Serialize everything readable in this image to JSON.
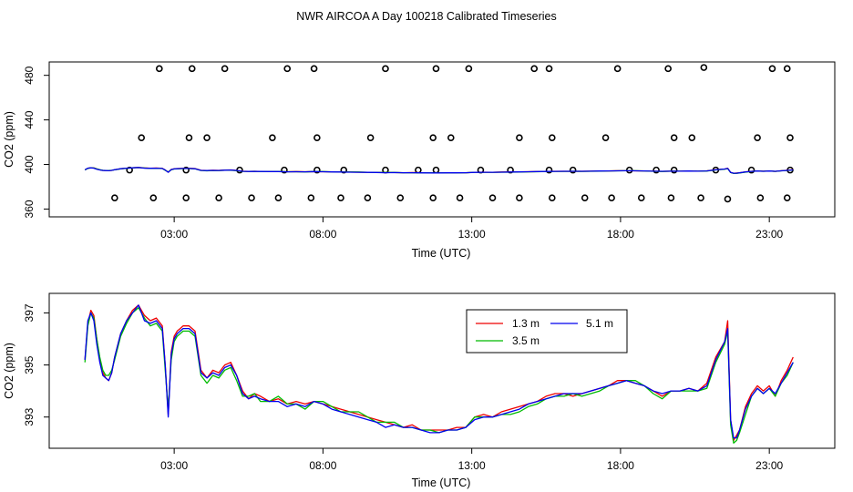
{
  "title": "NWR AIRCOA A  Day 100218  Calibrated Timeseries",
  "colors": {
    "s1": "#ee0000",
    "s2": "#00bb00",
    "s3": "#0000ee"
  },
  "chart_data": [
    {
      "type": "scatter",
      "name": "top-panel",
      "xlabel": "Time (UTC)",
      "ylabel": "CO2 (ppm)",
      "xlim": [
        -1.2,
        25.2
      ],
      "ylim": [
        353,
        492
      ],
      "xticks": [
        3,
        8,
        13,
        18,
        23
      ],
      "xtick_labels": [
        "03:00",
        "08:00",
        "13:00",
        "18:00",
        "23:00"
      ],
      "yticks": [
        360,
        400,
        440,
        480
      ],
      "ytick_labels": [
        "360",
        "400",
        "440",
        "480"
      ],
      "points_x": [
        1.0,
        2.3,
        3.4,
        4.5,
        5.6,
        6.5,
        7.6,
        8.6,
        9.5,
        10.6,
        11.7,
        12.6,
        13.7,
        14.6,
        15.7,
        16.8,
        17.7,
        18.7,
        19.7,
        20.7,
        21.6,
        22.7,
        23.6,
        1.5,
        3.4,
        5.2,
        6.7,
        7.8,
        8.7,
        10.1,
        11.2,
        11.8,
        13.3,
        14.3,
        15.6,
        16.4,
        18.3,
        19.2,
        19.8,
        21.2,
        22.4,
        23.7,
        1.9,
        3.5,
        4.1,
        6.3,
        7.8,
        9.6,
        11.7,
        12.3,
        14.6,
        15.7,
        17.5,
        19.8,
        20.4,
        22.6,
        23.7,
        2.5,
        3.6,
        4.7,
        6.8,
        7.7,
        10.1,
        11.8,
        12.9,
        15.1,
        15.6,
        17.9,
        19.6,
        20.8,
        23.1,
        23.6
      ],
      "points_y": [
        370,
        370,
        370,
        370,
        370,
        370,
        370,
        370,
        370,
        370,
        370,
        370,
        370,
        370,
        370,
        370,
        370,
        370,
        370,
        370,
        369,
        370,
        370,
        395,
        395,
        395,
        395,
        395,
        395,
        395,
        395,
        395,
        395,
        395,
        395,
        395,
        395,
        395,
        395,
        395,
        395,
        395,
        424,
        424,
        424,
        424,
        424,
        424,
        424,
        424,
        424,
        424,
        424,
        424,
        424,
        424,
        424,
        486,
        486,
        486,
        486,
        486,
        486,
        486,
        486,
        486,
        486,
        486,
        486,
        487,
        486,
        486
      ]
    },
    {
      "type": "line",
      "name": "bottom-panel",
      "xlabel": "Time (UTC)",
      "ylabel": "CO2 (ppm)",
      "xlim": [
        -1.2,
        25.2
      ],
      "ylim": [
        391.8,
        397.75
      ],
      "xticks": [
        3,
        8,
        13,
        18,
        23
      ],
      "xtick_labels": [
        "03:00",
        "08:00",
        "13:00",
        "18:00",
        "23:00"
      ],
      "yticks": [
        393,
        395,
        397
      ],
      "ytick_labels": [
        "393",
        "395",
        "397"
      ],
      "legend": [
        "1.3 m",
        "3.5 m",
        "5.1 m"
      ],
      "x": [
        0.0,
        0.1,
        0.2,
        0.3,
        0.4,
        0.5,
        0.6,
        0.7,
        0.8,
        0.9,
        1.0,
        1.2,
        1.4,
        1.6,
        1.8,
        2.0,
        2.2,
        2.4,
        2.6,
        2.7,
        2.8,
        2.9,
        3.0,
        3.1,
        3.2,
        3.3,
        3.5,
        3.7,
        3.9,
        4.1,
        4.3,
        4.5,
        4.7,
        4.9,
        5.1,
        5.3,
        5.5,
        5.7,
        5.9,
        6.2,
        6.5,
        6.8,
        7.1,
        7.4,
        7.7,
        8.0,
        8.3,
        8.6,
        8.9,
        9.2,
        9.5,
        9.8,
        10.1,
        10.4,
        10.7,
        11.0,
        11.3,
        11.6,
        11.9,
        12.2,
        12.5,
        12.8,
        13.1,
        13.4,
        13.7,
        14.0,
        14.3,
        14.6,
        14.9,
        15.2,
        15.5,
        15.8,
        16.1,
        16.4,
        16.7,
        17.0,
        17.3,
        17.6,
        17.9,
        18.2,
        18.5,
        18.8,
        19.1,
        19.4,
        19.7,
        20.0,
        20.3,
        20.6,
        20.9,
        21.2,
        21.5,
        21.6,
        21.7,
        21.8,
        21.9,
        22.0,
        22.2,
        22.4,
        22.6,
        22.8,
        23.0,
        23.2,
        23.4,
        23.6,
        23.8
      ],
      "series": [
        {
          "name": "1.3 m",
          "values": [
            395.2,
            396.6,
            397.1,
            396.9,
            396.0,
            395.2,
            394.7,
            394.5,
            394.4,
            394.7,
            395.3,
            396.2,
            396.7,
            397.1,
            397.3,
            396.9,
            396.7,
            396.8,
            396.5,
            395.0,
            393.1,
            395.5,
            396.1,
            396.3,
            396.4,
            396.5,
            396.5,
            396.3,
            394.8,
            394.5,
            394.8,
            394.7,
            395.0,
            395.1,
            394.6,
            394.0,
            393.7,
            393.9,
            393.8,
            393.6,
            393.7,
            393.5,
            393.6,
            393.5,
            393.6,
            393.5,
            393.4,
            393.3,
            393.2,
            393.1,
            393.0,
            392.9,
            392.8,
            392.7,
            392.6,
            392.7,
            392.5,
            392.5,
            392.5,
            392.5,
            392.6,
            392.6,
            393.0,
            393.1,
            393.0,
            393.2,
            393.3,
            393.4,
            393.5,
            393.6,
            393.8,
            393.9,
            393.9,
            393.8,
            393.9,
            394.0,
            394.1,
            394.2,
            394.4,
            394.4,
            394.3,
            394.2,
            394.0,
            393.8,
            394.0,
            394.0,
            394.1,
            394.0,
            394.3,
            395.3,
            395.9,
            396.7,
            392.9,
            392.1,
            392.3,
            392.5,
            393.4,
            393.9,
            394.2,
            394.0,
            394.2,
            393.8,
            394.4,
            394.8,
            395.3
          ]
        },
        {
          "name": "3.5 m",
          "values": [
            395.1,
            396.5,
            397.0,
            396.8,
            396.0,
            395.3,
            394.8,
            394.6,
            394.6,
            394.8,
            395.2,
            396.1,
            396.6,
            397.0,
            397.2,
            396.8,
            396.5,
            396.6,
            396.3,
            394.8,
            393.3,
            395.2,
            395.9,
            396.1,
            396.2,
            396.3,
            396.3,
            396.1,
            394.6,
            394.3,
            394.6,
            394.5,
            394.8,
            394.9,
            394.4,
            393.8,
            393.8,
            393.9,
            393.6,
            393.6,
            393.8,
            393.5,
            393.5,
            393.3,
            393.6,
            393.6,
            393.4,
            393.2,
            393.2,
            393.2,
            393.0,
            392.8,
            392.8,
            392.8,
            392.6,
            392.6,
            392.5,
            392.5,
            392.4,
            392.5,
            392.5,
            392.6,
            393.0,
            393.0,
            393.0,
            393.1,
            393.1,
            393.2,
            393.4,
            393.5,
            393.7,
            393.8,
            393.8,
            393.9,
            393.8,
            393.9,
            394.0,
            394.2,
            394.3,
            394.4,
            394.4,
            394.2,
            393.9,
            393.7,
            394.0,
            394.0,
            394.0,
            394.0,
            394.1,
            395.1,
            395.8,
            396.3,
            392.7,
            392.0,
            392.1,
            392.4,
            393.1,
            393.8,
            394.1,
            393.9,
            394.1,
            393.8,
            394.3,
            394.6,
            395.1
          ]
        },
        {
          "name": "5.1 m",
          "values": [
            395.2,
            396.7,
            397.0,
            396.7,
            395.8,
            395.1,
            394.6,
            394.5,
            394.4,
            394.7,
            395.3,
            396.2,
            396.7,
            397.0,
            397.3,
            396.7,
            396.6,
            396.7,
            396.4,
            395.0,
            393.0,
            395.4,
            396.0,
            396.2,
            396.3,
            396.4,
            396.4,
            396.2,
            394.7,
            394.5,
            394.7,
            394.6,
            394.9,
            395.0,
            394.6,
            393.9,
            393.7,
            393.8,
            393.7,
            393.6,
            393.6,
            393.4,
            393.5,
            393.4,
            393.6,
            393.5,
            393.3,
            393.2,
            393.1,
            393.0,
            392.9,
            392.8,
            392.6,
            392.7,
            392.6,
            392.6,
            392.5,
            392.4,
            392.4,
            392.5,
            392.5,
            392.6,
            392.9,
            393.0,
            393.0,
            393.1,
            393.2,
            393.3,
            393.5,
            393.6,
            393.7,
            393.8,
            393.9,
            393.9,
            393.9,
            394.0,
            394.1,
            394.2,
            394.3,
            394.4,
            394.3,
            394.2,
            394.0,
            393.9,
            394.0,
            394.0,
            394.1,
            394.0,
            394.2,
            395.2,
            395.9,
            396.4,
            392.9,
            392.2,
            392.2,
            392.5,
            393.3,
            393.8,
            394.1,
            393.9,
            394.1,
            393.9,
            394.3,
            394.7,
            395.1
          ]
        }
      ]
    }
  ]
}
